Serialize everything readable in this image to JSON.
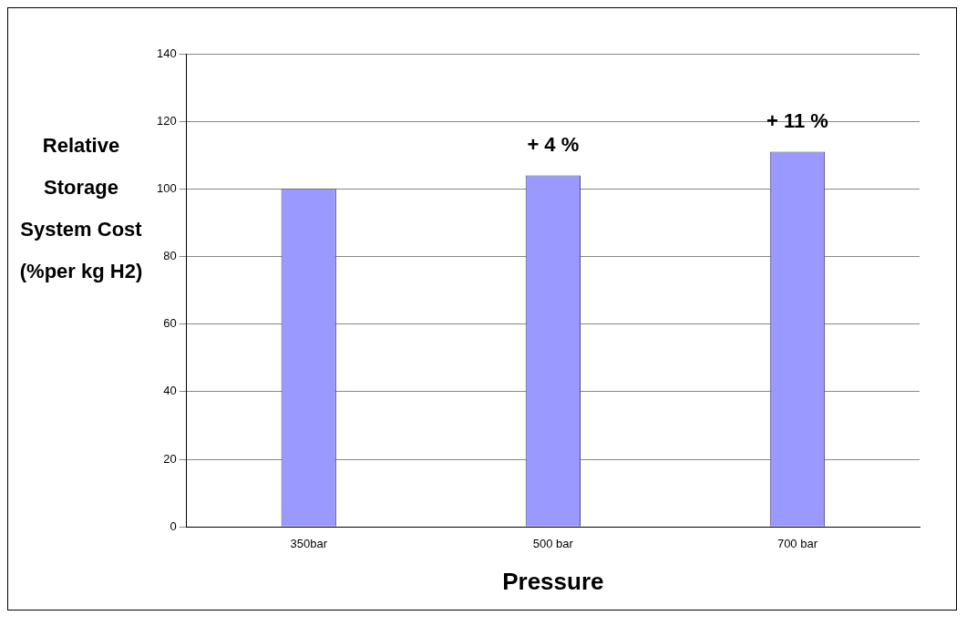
{
  "chart_data": {
    "type": "bar",
    "xlabel": "Pressure",
    "ylabel": "Relative Storage System Cost (%per kg H2)",
    "categories": [
      "350bar",
      "500 bar",
      "700 bar"
    ],
    "values": [
      100,
      104,
      111
    ],
    "color": "#9999ff",
    "ylim": [
      0,
      140
    ],
    "yticks": [
      0,
      20,
      40,
      60,
      80,
      100,
      120,
      140
    ],
    "grid": "y",
    "legend": false,
    "annotations": [
      {
        "text": "+ 4 %",
        "x": "500 bar",
        "y": 104
      },
      {
        "text": "+ 11 %",
        "x": "700 bar",
        "y": 111
      }
    ]
  }
}
